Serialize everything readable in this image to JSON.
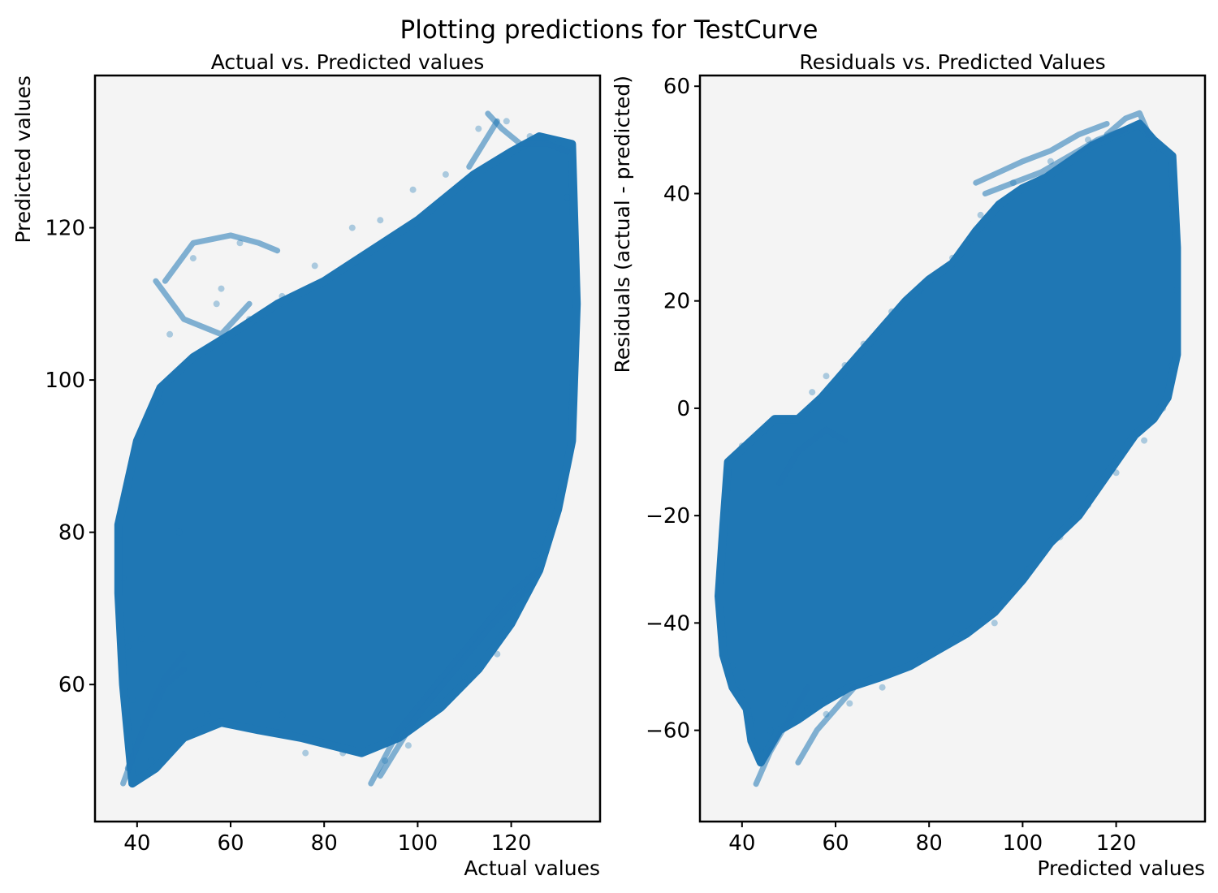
{
  "figure": {
    "suptitle": "Plotting predictions for TestCurve"
  },
  "colors": {
    "marker": "#1f77b4",
    "axes_bg": "#f4f4f4"
  },
  "chart_data": [
    {
      "type": "scatter",
      "title": "Actual vs. Predicted values",
      "xlabel": "Actual values",
      "ylabel": "Predicted values",
      "xlim": [
        31,
        139
      ],
      "ylim": [
        42,
        140
      ],
      "xticks": [
        40,
        60,
        80,
        100,
        120
      ],
      "yticks": [
        60,
        80,
        100,
        120
      ],
      "grid": false,
      "series": [
        {
          "cloud": [
            [
              [
                36,
                81
              ],
              [
                40,
                92
              ],
              [
                45,
                99
              ],
              [
                52,
                103
              ],
              [
                60,
                106
              ],
              [
                70,
                110
              ],
              [
                80,
                113
              ],
              [
                90,
                117
              ],
              [
                100,
                121
              ],
              [
                112,
                127
              ],
              [
                120,
                130
              ],
              [
                126,
                132
              ],
              [
                133,
                131
              ],
              [
                134,
                110
              ],
              [
                133,
                92
              ],
              [
                130,
                83
              ],
              [
                126,
                75
              ],
              [
                120,
                68
              ],
              [
                113,
                62
              ],
              [
                105,
                57
              ],
              [
                96,
                53
              ],
              [
                88,
                51
              ],
              [
                75,
                53
              ],
              [
                66,
                54
              ],
              [
                58,
                55
              ],
              [
                50,
                53
              ],
              [
                44,
                49
              ],
              [
                39,
                47
              ],
              [
                37,
                60
              ],
              [
                36,
                72
              ]
            ]
          ],
          "trails": [
            [
              [
                37,
                47
              ],
              [
                40,
                52
              ],
              [
                43,
                57
              ],
              [
                46,
                61
              ],
              [
                50,
                64
              ]
            ],
            [
              [
                38,
                49
              ],
              [
                42,
                55
              ],
              [
                46,
                60
              ],
              [
                50,
                62
              ]
            ],
            [
              [
                90,
                47
              ],
              [
                96,
                54
              ],
              [
                104,
                60
              ],
              [
                112,
                66
              ],
              [
                120,
                72
              ],
              [
                126,
                75
              ]
            ],
            [
              [
                92,
                48
              ],
              [
                100,
                56
              ],
              [
                108,
                62
              ],
              [
                116,
                68
              ],
              [
                124,
                73
              ]
            ],
            [
              [
                46,
                113
              ],
              [
                52,
                118
              ],
              [
                60,
                119
              ],
              [
                66,
                118
              ],
              [
                70,
                117
              ]
            ],
            [
              [
                44,
                113
              ],
              [
                50,
                108
              ],
              [
                58,
                106
              ],
              [
                64,
                110
              ]
            ],
            [
              [
                115,
                135
              ],
              [
                118,
                133
              ],
              [
                122,
                131
              ],
              [
                128,
                131
              ],
              [
                132,
                130
              ]
            ],
            [
              [
                111,
                128
              ],
              [
                114,
                131
              ],
              [
                117,
                134
              ]
            ]
          ],
          "points": [
            [
              36,
              79
            ],
            [
              37,
              74
            ],
            [
              38,
              65
            ],
            [
              39,
              58
            ],
            [
              41,
              66
            ],
            [
              43,
              50
            ],
            [
              45,
              97
            ],
            [
              47,
              106
            ],
            [
              49,
              80
            ],
            [
              52,
              116
            ],
            [
              55,
              56
            ],
            [
              58,
              112
            ],
            [
              62,
              118
            ],
            [
              66,
              60
            ],
            [
              71,
              56
            ],
            [
              76,
              51
            ],
            [
              84,
              51
            ],
            [
              93,
              50
            ],
            [
              98,
              52
            ],
            [
              104,
              58
            ],
            [
              110,
              61
            ],
            [
              117,
              64
            ],
            [
              125,
              77
            ],
            [
              129,
              84
            ],
            [
              133,
              97
            ],
            [
              134,
              112
            ],
            [
              132,
              124
            ],
            [
              130,
              131
            ],
            [
              124,
              132
            ],
            [
              119,
              134
            ],
            [
              113,
              133
            ],
            [
              106,
              127
            ],
            [
              99,
              125
            ],
            [
              92,
              121
            ],
            [
              86,
              120
            ],
            [
              78,
              115
            ],
            [
              71,
              111
            ],
            [
              64,
              108
            ],
            [
              57,
              110
            ]
          ]
        }
      ]
    },
    {
      "type": "scatter",
      "title": "Residuals vs. Predicted Values",
      "xlabel": "Predicted values",
      "ylabel": "Residuals (actual - predicted)",
      "xlim": [
        31,
        139
      ],
      "ylim": [
        -77,
        62
      ],
      "xticks": [
        40,
        60,
        80,
        100,
        120
      ],
      "yticks": [
        -60,
        -40,
        -20,
        0,
        20,
        40,
        60
      ],
      "grid": false,
      "series": [
        {
          "cloud": [
            [
              [
                37,
                -10
              ],
              [
                42,
                -6
              ],
              [
                47,
                -2
              ],
              [
                52,
                -2
              ],
              [
                57,
                2
              ],
              [
                60,
                5
              ],
              [
                65,
                10
              ],
              [
                70,
                15
              ],
              [
                75,
                20
              ],
              [
                80,
                24
              ],
              [
                85,
                27
              ],
              [
                90,
                33
              ],
              [
                95,
                38
              ],
              [
                100,
                41
              ],
              [
                105,
                43
              ],
              [
                110,
                46
              ],
              [
                115,
                49
              ],
              [
                120,
                51
              ],
              [
                125,
                53
              ],
              [
                128,
                50
              ],
              [
                132,
                47
              ],
              [
                133,
                30
              ],
              [
                133,
                10
              ],
              [
                131,
                2
              ],
              [
                128,
                -2
              ],
              [
                124,
                -5
              ],
              [
                120,
                -10
              ],
              [
                116,
                -15
              ],
              [
                112,
                -20
              ],
              [
                106,
                -25
              ],
              [
                100,
                -32
              ],
              [
                94,
                -38
              ],
              [
                88,
                -42
              ],
              [
                82,
                -45
              ],
              [
                76,
                -48
              ],
              [
                70,
                -50
              ],
              [
                63,
                -52
              ],
              [
                57,
                -55
              ],
              [
                52,
                -58
              ],
              [
                48,
                -60
              ],
              [
                44,
                -66
              ],
              [
                42,
                -62
              ],
              [
                41,
                -56
              ],
              [
                38,
                -52
              ],
              [
                36,
                -46
              ],
              [
                35,
                -35
              ],
              [
                36,
                -22
              ]
            ]
          ],
          "trails": [
            [
              [
                90,
                42
              ],
              [
                95,
                44
              ],
              [
                100,
                46
              ],
              [
                106,
                48
              ],
              [
                112,
                51
              ],
              [
                118,
                53
              ]
            ],
            [
              [
                92,
                40
              ],
              [
                98,
                42
              ],
              [
                104,
                44
              ],
              [
                110,
                47
              ],
              [
                116,
                50
              ],
              [
                122,
                52
              ]
            ],
            [
              [
                43,
                -70
              ],
              [
                46,
                -64
              ],
              [
                50,
                -58
              ],
              [
                54,
                -52
              ]
            ],
            [
              [
                52,
                -66
              ],
              [
                56,
                -60
              ],
              [
                60,
                -56
              ],
              [
                64,
                -52
              ]
            ],
            [
              [
                118,
                51
              ],
              [
                122,
                54
              ],
              [
                125,
                55
              ],
              [
                127,
                51
              ]
            ],
            [
              [
                48,
                -14
              ],
              [
                52,
                -8
              ],
              [
                58,
                -4
              ],
              [
                62,
                -6
              ]
            ]
          ],
          "points": [
            [
              36,
              -42
            ],
            [
              38,
              -48
            ],
            [
              40,
              -52
            ],
            [
              42,
              -58
            ],
            [
              44,
              -64
            ],
            [
              46,
              -60
            ],
            [
              49,
              -55
            ],
            [
              54,
              -56
            ],
            [
              58,
              -57
            ],
            [
              63,
              -55
            ],
            [
              70,
              -52
            ],
            [
              78,
              -46
            ],
            [
              86,
              -42
            ],
            [
              94,
              -40
            ],
            [
              101,
              -30
            ],
            [
              108,
              -24
            ],
            [
              114,
              -18
            ],
            [
              120,
              -12
            ],
            [
              126,
              -6
            ],
            [
              130,
              0
            ],
            [
              132,
              8
            ],
            [
              133,
              22
            ],
            [
              132,
              38
            ],
            [
              128,
              48
            ],
            [
              123,
              52
            ],
            [
              114,
              50
            ],
            [
              106,
              46
            ],
            [
              98,
              42
            ],
            [
              91,
              36
            ],
            [
              85,
              28
            ],
            [
              78,
              22
            ],
            [
              72,
              18
            ],
            [
              66,
              12
            ],
            [
              62,
              8
            ],
            [
              58,
              6
            ],
            [
              55,
              3
            ],
            [
              50,
              -2
            ],
            [
              45,
              -4
            ],
            [
              40,
              -7
            ],
            [
              37,
              -12
            ]
          ]
        }
      ]
    }
  ]
}
